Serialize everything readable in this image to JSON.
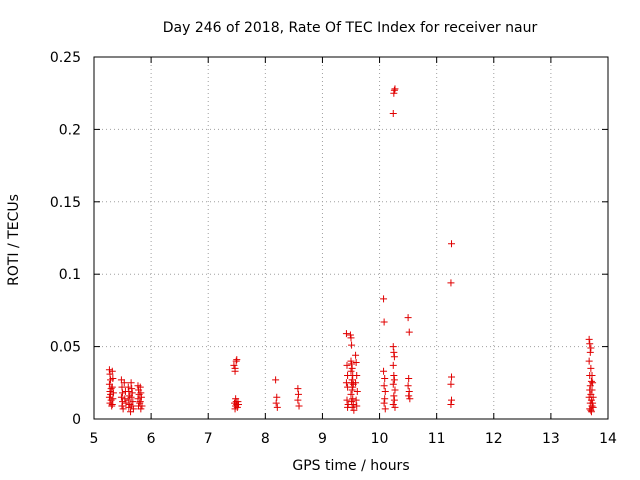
{
  "chart_data": {
    "type": "scatter",
    "title": "Day 246 of 2018, Rate Of TEC Index for receiver naur",
    "xlabel": "GPS time / hours",
    "ylabel": "ROTI / TECUs",
    "xlim": [
      5,
      14
    ],
    "ylim": [
      0,
      0.25
    ],
    "xticks": [
      5,
      6,
      7,
      8,
      9,
      10,
      11,
      12,
      13,
      14
    ],
    "xtick_labels": [
      "5",
      "6",
      "7",
      "8",
      "9",
      "10",
      "11",
      "12",
      "13",
      "14"
    ],
    "yticks": [
      0,
      0.05,
      0.1,
      0.15,
      0.2,
      0.25
    ],
    "ytick_labels": [
      "0",
      "0.05",
      "0.1",
      "0.15",
      "0.2",
      "0.25"
    ],
    "grid": true,
    "marker": "+",
    "color": "#e00000",
    "series": [
      {
        "name": "ROTI",
        "points": [
          [
            5.27,
            0.034
          ],
          [
            5.28,
            0.031
          ],
          [
            5.29,
            0.027
          ],
          [
            5.27,
            0.024
          ],
          [
            5.3,
            0.021
          ],
          [
            5.28,
            0.019
          ],
          [
            5.29,
            0.017
          ],
          [
            5.27,
            0.015
          ],
          [
            5.3,
            0.013
          ],
          [
            5.28,
            0.011
          ],
          [
            5.31,
            0.009
          ],
          [
            5.32,
            0.033
          ],
          [
            5.33,
            0.028
          ],
          [
            5.32,
            0.022
          ],
          [
            5.34,
            0.018
          ],
          [
            5.33,
            0.014
          ],
          [
            5.32,
            0.01
          ],
          [
            5.48,
            0.027
          ],
          [
            5.49,
            0.022
          ],
          [
            5.5,
            0.018
          ],
          [
            5.48,
            0.015
          ],
          [
            5.5,
            0.012
          ],
          [
            5.49,
            0.009
          ],
          [
            5.51,
            0.007
          ],
          [
            5.53,
            0.025
          ],
          [
            5.55,
            0.019
          ],
          [
            5.54,
            0.014
          ],
          [
            5.56,
            0.011
          ],
          [
            5.6,
            0.022
          ],
          [
            5.61,
            0.019
          ],
          [
            5.62,
            0.016
          ],
          [
            5.6,
            0.013
          ],
          [
            5.63,
            0.01
          ],
          [
            5.61,
            0.008
          ],
          [
            5.65,
            0.025
          ],
          [
            5.66,
            0.021
          ],
          [
            5.67,
            0.018
          ],
          [
            5.65,
            0.015
          ],
          [
            5.68,
            0.012
          ],
          [
            5.66,
            0.009
          ],
          [
            5.69,
            0.007
          ],
          [
            5.64,
            0.005
          ],
          [
            5.77,
            0.023
          ],
          [
            5.78,
            0.02
          ],
          [
            5.79,
            0.017
          ],
          [
            5.77,
            0.014
          ],
          [
            5.8,
            0.011
          ],
          [
            5.78,
            0.009
          ],
          [
            5.81,
            0.022
          ],
          [
            5.82,
            0.018
          ],
          [
            5.83,
            0.015
          ],
          [
            5.81,
            0.012
          ],
          [
            5.84,
            0.009
          ],
          [
            5.82,
            0.007
          ],
          [
            7.45,
            0.037
          ],
          [
            7.47,
            0.035
          ],
          [
            7.49,
            0.04
          ],
          [
            7.5,
            0.041
          ],
          [
            7.47,
            0.033
          ],
          [
            7.48,
            0.014
          ],
          [
            7.49,
            0.012
          ],
          [
            7.46,
            0.011
          ],
          [
            7.5,
            0.01
          ],
          [
            7.48,
            0.009
          ],
          [
            7.51,
            0.008
          ],
          [
            7.47,
            0.007
          ],
          [
            7.52,
            0.012
          ],
          [
            7.53,
            0.01
          ],
          [
            8.18,
            0.027
          ],
          [
            8.2,
            0.015
          ],
          [
            8.19,
            0.011
          ],
          [
            8.21,
            0.008
          ],
          [
            8.57,
            0.021
          ],
          [
            8.58,
            0.017
          ],
          [
            8.57,
            0.013
          ],
          [
            8.59,
            0.009
          ],
          [
            9.42,
            0.059
          ],
          [
            9.43,
            0.037
          ],
          [
            9.44,
            0.03
          ],
          [
            9.42,
            0.025
          ],
          [
            9.44,
            0.022
          ],
          [
            9.43,
            0.013
          ],
          [
            9.45,
            0.01
          ],
          [
            9.44,
            0.008
          ],
          [
            9.49,
            0.058
          ],
          [
            9.5,
            0.056
          ],
          [
            9.51,
            0.051
          ],
          [
            9.5,
            0.04
          ],
          [
            9.51,
            0.038
          ],
          [
            9.52,
            0.035
          ],
          [
            9.5,
            0.033
          ],
          [
            9.53,
            0.03
          ],
          [
            9.52,
            0.027
          ],
          [
            9.51,
            0.025
          ],
          [
            9.54,
            0.024
          ],
          [
            9.53,
            0.022
          ],
          [
            9.52,
            0.02
          ],
          [
            9.5,
            0.017
          ],
          [
            9.53,
            0.014
          ],
          [
            9.51,
            0.012
          ],
          [
            9.54,
            0.01
          ],
          [
            9.52,
            0.008
          ],
          [
            9.55,
            0.006
          ],
          [
            9.58,
            0.044
          ],
          [
            9.59,
            0.039
          ],
          [
            9.6,
            0.03
          ],
          [
            9.58,
            0.025
          ],
          [
            9.61,
            0.019
          ],
          [
            9.59,
            0.013
          ],
          [
            9.6,
            0.009
          ],
          [
            10.07,
            0.083
          ],
          [
            10.08,
            0.067
          ],
          [
            10.07,
            0.033
          ],
          [
            10.09,
            0.028
          ],
          [
            10.08,
            0.023
          ],
          [
            10.1,
            0.019
          ],
          [
            10.09,
            0.014
          ],
          [
            10.08,
            0.011
          ],
          [
            10.1,
            0.007
          ],
          [
            10.24,
            0.211
          ],
          [
            10.25,
            0.225
          ],
          [
            10.26,
            0.227
          ],
          [
            10.27,
            0.228
          ],
          [
            10.24,
            0.05
          ],
          [
            10.25,
            0.046
          ],
          [
            10.26,
            0.043
          ],
          [
            10.24,
            0.037
          ],
          [
            10.25,
            0.03
          ],
          [
            10.26,
            0.027
          ],
          [
            10.24,
            0.024
          ],
          [
            10.27,
            0.02
          ],
          [
            10.25,
            0.016
          ],
          [
            10.26,
            0.013
          ],
          [
            10.24,
            0.01
          ],
          [
            10.27,
            0.008
          ],
          [
            10.5,
            0.07
          ],
          [
            10.52,
            0.06
          ],
          [
            10.51,
            0.028
          ],
          [
            10.5,
            0.023
          ],
          [
            10.52,
            0.019
          ],
          [
            10.51,
            0.016
          ],
          [
            10.53,
            0.014
          ],
          [
            11.26,
            0.121
          ],
          [
            11.25,
            0.094
          ],
          [
            11.26,
            0.029
          ],
          [
            11.25,
            0.024
          ],
          [
            11.26,
            0.013
          ],
          [
            11.25,
            0.01
          ],
          [
            13.67,
            0.055
          ],
          [
            13.68,
            0.052
          ],
          [
            13.7,
            0.049
          ],
          [
            13.69,
            0.046
          ],
          [
            13.67,
            0.04
          ],
          [
            13.7,
            0.035
          ],
          [
            13.68,
            0.03
          ],
          [
            13.71,
            0.026
          ],
          [
            13.69,
            0.023
          ],
          [
            13.68,
            0.02
          ],
          [
            13.7,
            0.017
          ],
          [
            13.67,
            0.015
          ],
          [
            13.71,
            0.013
          ],
          [
            13.69,
            0.011
          ],
          [
            13.72,
            0.009
          ],
          [
            13.68,
            0.007
          ],
          [
            13.7,
            0.006
          ],
          [
            13.71,
            0.005
          ],
          [
            13.72,
            0.03
          ],
          [
            13.73,
            0.025
          ],
          [
            13.72,
            0.02
          ],
          [
            13.74,
            0.015
          ],
          [
            13.73,
            0.011
          ],
          [
            13.74,
            0.008
          ]
        ]
      }
    ]
  }
}
